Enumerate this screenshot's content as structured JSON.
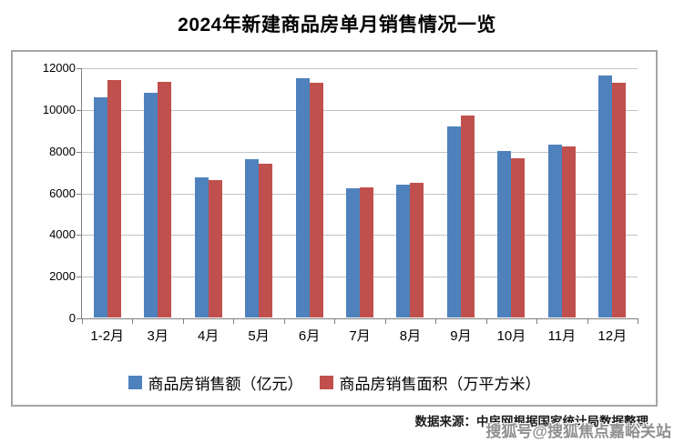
{
  "page": {
    "title": "2024年新建商品房单月销售情况一览",
    "source_note": "数据来源：中房网根据国家统计局数据整理",
    "watermark": "搜狐号@搜狐焦点嘉峪关站"
  },
  "chart_data": {
    "type": "bar",
    "title": "2024年新建商品房单月销售情况一览",
    "categories": [
      "1-2月",
      "3月",
      "4月",
      "5月",
      "6月",
      "7月",
      "8月",
      "9月",
      "10月",
      "11月",
      "12月"
    ],
    "series": [
      {
        "name": "商品房销售额（亿元）",
        "color": "#4F81BD",
        "values": [
          10566,
          10789,
          6712,
          7598,
          11468,
          6197,
          6393,
          9157,
          7975,
          8270,
          11625
        ]
      },
      {
        "name": "商品房销售面积（万平方米）",
        "color": "#C0504D",
        "values": [
          11369,
          11299,
          6584,
          7390,
          11274,
          6233,
          6453,
          9682,
          7646,
          8188,
          11267
        ]
      }
    ],
    "ylim": [
      0,
      12000
    ],
    "yticks": [
      0,
      2000,
      4000,
      6000,
      8000,
      10000,
      12000
    ],
    "grid": true,
    "legend_position": "bottom",
    "colors": {
      "grid": "#C3C3C3",
      "axis": "#7F7F7F",
      "frame": "#A6A6A6"
    }
  }
}
